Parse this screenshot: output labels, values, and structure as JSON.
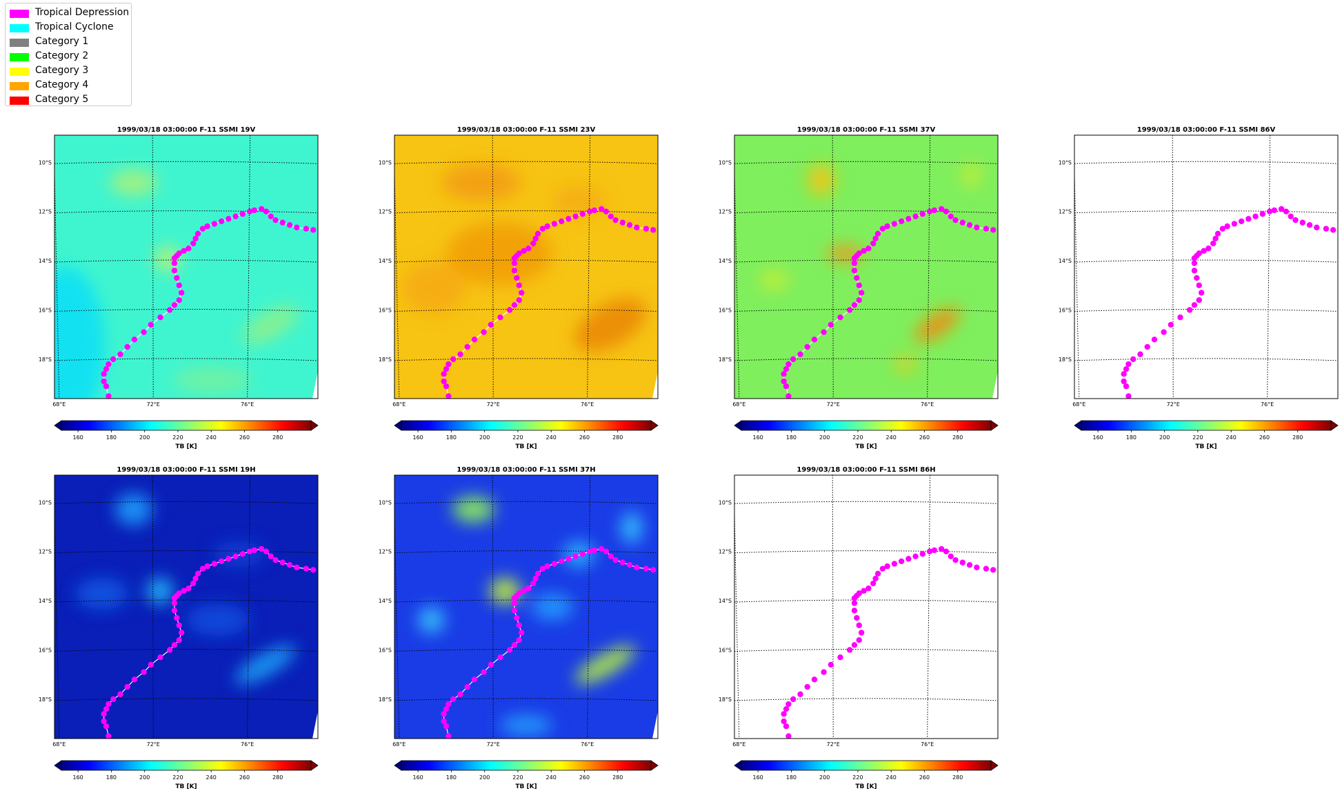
{
  "legend": {
    "items": [
      {
        "label": "Tropical Depression",
        "color": "#ff00ff"
      },
      {
        "label": "Tropical Cyclone",
        "color": "#00ffff"
      },
      {
        "label": "Category 1",
        "color": "#808080"
      },
      {
        "label": "Category 2",
        "color": "#00ff00"
      },
      {
        "label": "Category 3",
        "color": "#ffff00"
      },
      {
        "label": "Category 4",
        "color": "#ffa500"
      },
      {
        "label": "Category 5",
        "color": "#ff0000"
      }
    ]
  },
  "map_axes": {
    "lon_ticks": [
      "68°E",
      "72°E",
      "76°E"
    ],
    "lat_ticks": [
      "10°S",
      "12°S",
      "14°S",
      "16°S",
      "18°S"
    ]
  },
  "colorbar": {
    "ticks": [
      "160",
      "180",
      "200",
      "220",
      "240",
      "260",
      "280"
    ],
    "label": "TB [K]",
    "min": 150,
    "max": 300
  },
  "panels": [
    {
      "title": "1999/03/18 03:00:00  F-11 SSMI 19V",
      "background": "#3ff5d0",
      "pattern": "19v"
    },
    {
      "title": "1999/03/18 03:00:00  F-11 SSMI 23V",
      "background": "#f7c413",
      "pattern": "23v"
    },
    {
      "title": "1999/03/18 03:00:00  F-11 SSMI 37V",
      "background": "#7fef5e",
      "pattern": "37v"
    },
    {
      "title": "1999/03/18 03:00:00  F-11 SSMI 86V",
      "background": "#ffffff",
      "pattern": "none"
    },
    {
      "title": "1999/03/18 03:00:00  F-11 SSMI 19H",
      "background": "#0a1fb8",
      "pattern": "19h"
    },
    {
      "title": "1999/03/18 03:00:00  F-11 SSMI 37H",
      "background": "#1a3ce6",
      "pattern": "37h"
    },
    {
      "title": "1999/03/18 03:00:00  F-11 SSMI 86H",
      "background": "#ffffff",
      "pattern": "none"
    }
  ],
  "chart_data": {
    "type": "scatter",
    "description_series": "storm track (Tropical Depression)",
    "series": [
      {
        "name": "Tropical Depression",
        "color": "#ff00ff",
        "lon": [
          70.1,
          70.0,
          69.9,
          69.9,
          70.0,
          70.1,
          70.3,
          70.6,
          70.9,
          71.2,
          71.6,
          71.9,
          72.3,
          72.7,
          72.9,
          73.1,
          73.2,
          73.1,
          73.0,
          72.9,
          72.9,
          72.9,
          73.0,
          73.1,
          73.3,
          73.5,
          73.7,
          73.8,
          73.9,
          74.1,
          74.3,
          74.6,
          74.9,
          75.2,
          75.5,
          75.8,
          76.1,
          76.3,
          76.6,
          76.8,
          77.0,
          77.2,
          77.5,
          77.8,
          78.1,
          78.5,
          78.8
        ],
        "lat": [
          -19.5,
          -19.1,
          -18.9,
          -18.6,
          -18.4,
          -18.2,
          -18.0,
          -17.8,
          -17.5,
          -17.2,
          -16.9,
          -16.6,
          -16.3,
          -16.0,
          -15.8,
          -15.6,
          -15.3,
          -15.0,
          -14.7,
          -14.4,
          -14.1,
          -13.9,
          -13.8,
          -13.7,
          -13.6,
          -13.5,
          -13.3,
          -13.1,
          -12.9,
          -12.7,
          -12.6,
          -12.5,
          -12.4,
          -12.3,
          -12.2,
          -12.1,
          -12.0,
          -11.95,
          -11.9,
          -12.0,
          -12.2,
          -12.35,
          -12.45,
          -12.55,
          -12.65,
          -12.7,
          -12.75
        ]
      }
    ],
    "xlim": [
      67.8,
      79.0
    ],
    "ylim": [
      -19.6,
      -8.9
    ],
    "colorbar_range": [
      150,
      300
    ],
    "colormap": "jet"
  }
}
